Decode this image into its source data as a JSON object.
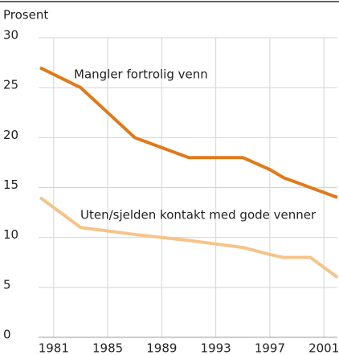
{
  "chart_data": {
    "type": "line",
    "y_label": "Prosent",
    "x": [
      1980,
      1983,
      1987,
      1991,
      1995,
      1997,
      1998,
      2000,
      2002
    ],
    "series": [
      {
        "name": "Mangler fortrolig venn",
        "color": "#df7a1c",
        "values": [
          27,
          25,
          20,
          18,
          18,
          16.8,
          16,
          15,
          14
        ]
      },
      {
        "name": "Uten/sjelden kontakt med gode venner",
        "color": "#f5c48a",
        "values": [
          14,
          11,
          10.3,
          9.7,
          9,
          8.3,
          8,
          8,
          6
        ]
      }
    ],
    "xlim": [
      1980,
      2002
    ],
    "xticks": [
      1981,
      1985,
      1989,
      1993,
      1997,
      2001
    ],
    "ylim": [
      0,
      30
    ],
    "yticks": [
      0,
      5,
      10,
      15,
      20,
      25,
      30
    ],
    "grid": true
  }
}
